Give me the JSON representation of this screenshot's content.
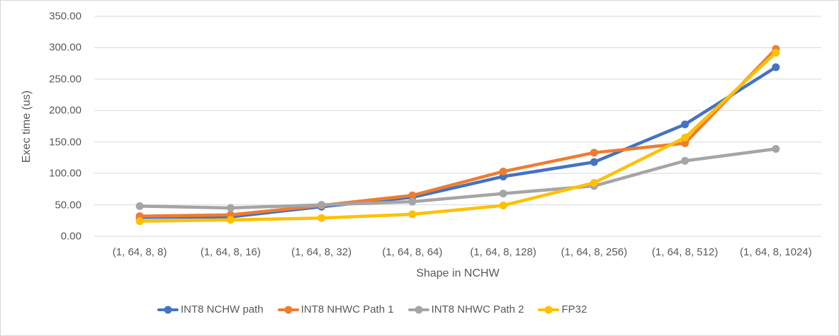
{
  "chart_data": {
    "type": "line",
    "title": "",
    "xlabel": "Shape in NCHW",
    "ylabel": "Exec time (us)",
    "categories": [
      "(1, 64, 8, 8)",
      "(1, 64, 8, 16)",
      "(1, 64, 8, 32)",
      "(1, 64, 8, 64)",
      "(1, 64, 8, 128)",
      "(1, 64, 8, 256)",
      "(1, 64, 8, 512)",
      "(1, 64, 8, 1024)"
    ],
    "series": [
      {
        "name": "INT8 NCHW path",
        "color": "#4472C4",
        "values": [
          30,
          31,
          47,
          62,
          95,
          118,
          178,
          269
        ]
      },
      {
        "name": "INT8 NHWC Path 1",
        "color": "#ED7D31",
        "values": [
          32,
          34,
          49,
          65,
          103,
          133,
          148,
          298
        ]
      },
      {
        "name": "INT8 NHWC Path 2",
        "color": "#A5A5A5",
        "values": [
          48,
          45,
          50,
          55,
          68,
          80,
          120,
          139
        ]
      },
      {
        "name": "FP32",
        "color": "#FFC000",
        "values": [
          24,
          26,
          29,
          35,
          49,
          85,
          157,
          292
        ]
      }
    ],
    "ylim": [
      0,
      350
    ],
    "ytick_step": 50,
    "ytick_labels": [
      "0.00",
      "50.00",
      "100.00",
      "150.00",
      "200.00",
      "250.00",
      "300.00",
      "350.00"
    ],
    "grid": true,
    "gridline_color": "#D9D9D9",
    "legend_position": "bottom",
    "marker": "circle"
  }
}
